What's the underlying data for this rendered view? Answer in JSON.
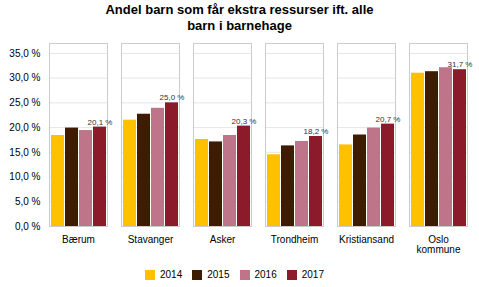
{
  "chart_data": {
    "type": "bar",
    "title": "Andel barn som får ekstra ressurser ift. alle\nbarn i barnehage",
    "categories": [
      "Bærum",
      "Stavanger",
      "Asker",
      "Trondheim",
      "Kristiansand",
      "Oslo\nkommune"
    ],
    "series": [
      {
        "name": "2014",
        "color": "#FFC000",
        "values": [
          18.4,
          21.5,
          17.6,
          14.5,
          16.5,
          31.0
        ]
      },
      {
        "name": "2015",
        "color": "#3D1C02",
        "values": [
          19.9,
          22.7,
          17.1,
          16.3,
          18.5,
          31.3
        ]
      },
      {
        "name": "2016",
        "color": "#C0748A",
        "values": [
          19.4,
          23.9,
          18.4,
          17.2,
          19.9,
          32.1
        ]
      },
      {
        "name": "2017",
        "color": "#8B1A2A",
        "values": [
          20.1,
          25.0,
          20.3,
          18.2,
          20.7,
          31.7
        ],
        "value_labels": [
          "20,1 %",
          "25,0 %",
          "20,3 %",
          "18,2 %",
          "20,7 %",
          "31,7 %"
        ]
      }
    ],
    "ylim": [
      0,
      37
    ],
    "yticks": [
      {
        "value": 0.0,
        "label": "0,0 %"
      },
      {
        "value": 5.0,
        "label": "5,0 %"
      },
      {
        "value": 10.0,
        "label": "10,0 %"
      },
      {
        "value": 15.0,
        "label": "15,0 %"
      },
      {
        "value": 20.0,
        "label": "20,0 %"
      },
      {
        "value": 25.0,
        "label": "25,0 %"
      },
      {
        "value": 30.0,
        "label": "30,0 %"
      },
      {
        "value": 35.0,
        "label": "35,0 %"
      }
    ],
    "grid": true,
    "legend": "bottom"
  }
}
